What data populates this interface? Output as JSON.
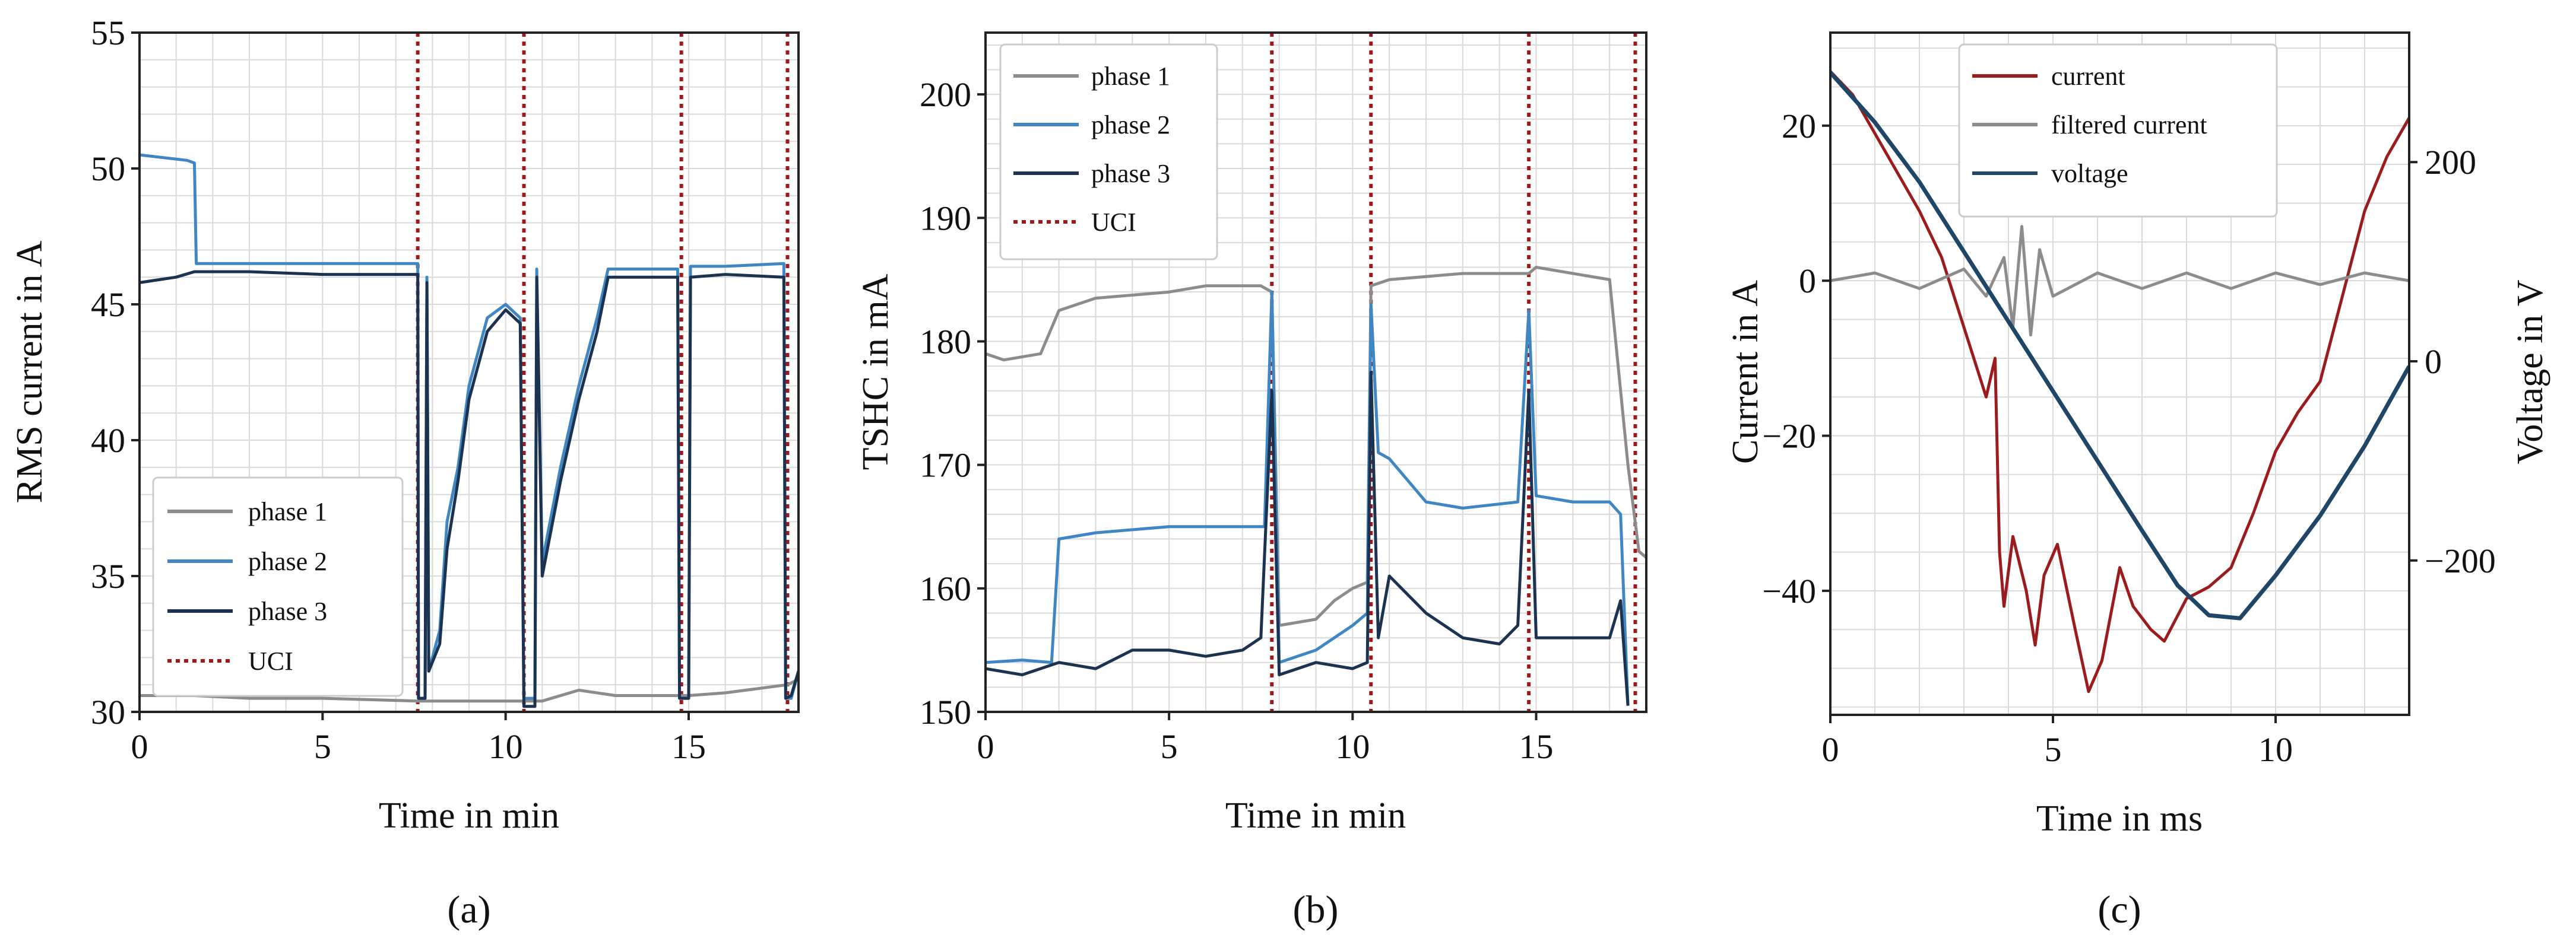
{
  "figure": {
    "captions": [
      "(a)",
      "(b)",
      "(c)"
    ]
  },
  "colors": {
    "phase1": "#8c8c8c",
    "phase2": "#3f86c2",
    "phase3": "#1b3350",
    "uci": "#a01818",
    "current": "#9b1c1c",
    "filtered": "#8c8c8c",
    "voltage": "#1f4666",
    "grid": "#d9d9d9"
  },
  "chart_data": [
    {
      "id": "a",
      "type": "line",
      "title": "",
      "xlabel": "Time in min",
      "ylabel": "RMS current in A",
      "xlim": [
        0,
        18
      ],
      "ylim": [
        30,
        55
      ],
      "xticks": [
        0,
        5,
        10,
        15
      ],
      "yticks": [
        30,
        35,
        40,
        45,
        50,
        55
      ],
      "grid": true,
      "legend_position": "lower-left",
      "legend": [
        "phase 1",
        "phase 2",
        "phase 3",
        "UCI"
      ],
      "uci_lines": [
        7.6,
        10.5,
        14.8,
        17.7
      ],
      "series": [
        {
          "name": "phase 1",
          "color_key": "phase1",
          "points": [
            [
              0,
              30.6
            ],
            [
              1.5,
              30.6
            ],
            [
              3,
              30.5
            ],
            [
              5,
              30.5
            ],
            [
              7.6,
              30.4
            ],
            [
              9,
              30.4
            ],
            [
              10.5,
              30.4
            ],
            [
              11,
              30.4
            ],
            [
              12,
              30.8
            ],
            [
              13,
              30.6
            ],
            [
              15,
              30.6
            ],
            [
              16,
              30.7
            ],
            [
              17.7,
              31.0
            ],
            [
              18,
              31.2
            ]
          ]
        },
        {
          "name": "phase 2",
          "color_key": "phase2",
          "points": [
            [
              0,
              50.5
            ],
            [
              1.3,
              50.3
            ],
            [
              1.5,
              50.2
            ],
            [
              1.55,
              46.5
            ],
            [
              3,
              46.5
            ],
            [
              5,
              46.5
            ],
            [
              7.6,
              46.5
            ],
            [
              7.62,
              30.5
            ],
            [
              7.8,
              30.5
            ],
            [
              7.85,
              46.0
            ],
            [
              7.9,
              31.5
            ],
            [
              8.2,
              33
            ],
            [
              8.4,
              37
            ],
            [
              8.7,
              39
            ],
            [
              9,
              42
            ],
            [
              9.5,
              44.5
            ],
            [
              10,
              45.0
            ],
            [
              10.4,
              44.5
            ],
            [
              10.5,
              30.5
            ],
            [
              10.8,
              30.5
            ],
            [
              10.85,
              46.3
            ],
            [
              11,
              35.5
            ],
            [
              11.5,
              39
            ],
            [
              12,
              42
            ],
            [
              12.5,
              44.5
            ],
            [
              12.8,
              46.3
            ],
            [
              14.7,
              46.3
            ],
            [
              14.75,
              30.5
            ],
            [
              15.0,
              30.5
            ],
            [
              15.05,
              46.4
            ],
            [
              16,
              46.4
            ],
            [
              17.6,
              46.5
            ],
            [
              17.65,
              30.5
            ],
            [
              17.8,
              30.5
            ],
            [
              18,
              31.5
            ]
          ]
        },
        {
          "name": "phase 3",
          "color_key": "phase3",
          "points": [
            [
              0,
              45.8
            ],
            [
              1,
              46.0
            ],
            [
              1.5,
              46.2
            ],
            [
              3,
              46.2
            ],
            [
              5,
              46.1
            ],
            [
              7.6,
              46.1
            ],
            [
              7.62,
              30.5
            ],
            [
              7.8,
              30.5
            ],
            [
              7.85,
              45.8
            ],
            [
              7.9,
              31.5
            ],
            [
              8.2,
              32.5
            ],
            [
              8.4,
              36
            ],
            [
              8.7,
              38.5
            ],
            [
              9,
              41.5
            ],
            [
              9.5,
              44
            ],
            [
              10,
              44.8
            ],
            [
              10.4,
              44.3
            ],
            [
              10.5,
              30.2
            ],
            [
              10.8,
              30.2
            ],
            [
              10.85,
              46.0
            ],
            [
              11,
              35
            ],
            [
              11.5,
              38.5
            ],
            [
              12,
              41.5
            ],
            [
              12.5,
              44
            ],
            [
              12.8,
              46.0
            ],
            [
              14.7,
              46.0
            ],
            [
              14.75,
              30.5
            ],
            [
              15.0,
              30.5
            ],
            [
              15.05,
              46.0
            ],
            [
              16,
              46.1
            ],
            [
              17.6,
              46.0
            ],
            [
              17.65,
              30.5
            ],
            [
              17.8,
              30.6
            ],
            [
              18,
              31.5
            ]
          ]
        }
      ]
    },
    {
      "id": "b",
      "type": "line",
      "title": "",
      "xlabel": "Time in min",
      "ylabel": "TSHC in mA",
      "xlim": [
        0,
        18
      ],
      "ylim": [
        150,
        205
      ],
      "xticks": [
        0,
        5,
        10,
        15
      ],
      "yticks": [
        150,
        160,
        170,
        180,
        190,
        200
      ],
      "grid": true,
      "legend_position": "top-left",
      "legend": [
        "phase 1",
        "phase 2",
        "phase 3",
        "UCI"
      ],
      "uci_lines": [
        7.8,
        10.5,
        14.8,
        17.7
      ],
      "series": [
        {
          "name": "phase 1",
          "color_key": "phase1",
          "points": [
            [
              0,
              179
            ],
            [
              0.5,
              178.5
            ],
            [
              1.5,
              179
            ],
            [
              2,
              182.5
            ],
            [
              3,
              183.5
            ],
            [
              5,
              184
            ],
            [
              6,
              184.5
            ],
            [
              7.5,
              184.5
            ],
            [
              7.8,
              184
            ],
            [
              8,
              157
            ],
            [
              9,
              157.5
            ],
            [
              9.5,
              159
            ],
            [
              10,
              160
            ],
            [
              10.4,
              160.5
            ],
            [
              10.5,
              184.5
            ],
            [
              11,
              185
            ],
            [
              13,
              185.5
            ],
            [
              14.8,
              185.5
            ],
            [
              15,
              186
            ],
            [
              17,
              185
            ],
            [
              17.5,
              170
            ],
            [
              17.8,
              163
            ],
            [
              18,
              162.5
            ]
          ]
        },
        {
          "name": "phase 2",
          "color_key": "phase2",
          "points": [
            [
              0,
              154
            ],
            [
              1,
              154.2
            ],
            [
              1.8,
              154
            ],
            [
              2,
              164
            ],
            [
              3,
              164.5
            ],
            [
              5,
              165
            ],
            [
              7,
              165
            ],
            [
              7.6,
              165
            ],
            [
              7.8,
              184
            ],
            [
              8,
              154
            ],
            [
              9,
              155
            ],
            [
              10,
              157
            ],
            [
              10.4,
              158
            ],
            [
              10.5,
              183
            ],
            [
              10.7,
              171
            ],
            [
              11,
              170.5
            ],
            [
              12,
              167
            ],
            [
              13,
              166.5
            ],
            [
              14.5,
              167
            ],
            [
              14.8,
              182.5
            ],
            [
              15,
              167.5
            ],
            [
              16,
              167
            ],
            [
              17,
              167
            ],
            [
              17.3,
              166
            ],
            [
              17.5,
              150.5
            ]
          ]
        },
        {
          "name": "phase 3",
          "color_key": "phase3",
          "points": [
            [
              0,
              153.5
            ],
            [
              1,
              153
            ],
            [
              2,
              154
            ],
            [
              3,
              153.5
            ],
            [
              4,
              155
            ],
            [
              5,
              155
            ],
            [
              6,
              154.5
            ],
            [
              7,
              155
            ],
            [
              7.5,
              156
            ],
            [
              7.8,
              176
            ],
            [
              8,
              153
            ],
            [
              9,
              154
            ],
            [
              10,
              153.5
            ],
            [
              10.4,
              154
            ],
            [
              10.5,
              177.5
            ],
            [
              10.7,
              156
            ],
            [
              11,
              161
            ],
            [
              12,
              158
            ],
            [
              13,
              156
            ],
            [
              14,
              155.5
            ],
            [
              14.5,
              157
            ],
            [
              14.8,
              176
            ],
            [
              15,
              156
            ],
            [
              16,
              156
            ],
            [
              17,
              156
            ],
            [
              17.3,
              159
            ],
            [
              17.5,
              150.5
            ]
          ]
        }
      ]
    },
    {
      "id": "c",
      "type": "line",
      "title": "",
      "xlabel": "Time in ms",
      "ylabel": "Current in A",
      "y2label": "Voltage in V",
      "xlim": [
        0,
        13
      ],
      "ylim": [
        -56,
        32
      ],
      "y2lim": [
        -355,
        330
      ],
      "xticks": [
        0,
        5,
        10
      ],
      "yticks": [
        -40,
        -20,
        0,
        20
      ],
      "y2ticks": [
        -200,
        0,
        200
      ],
      "grid": true,
      "legend_position": "top-center",
      "legend": [
        "current",
        "filtered current",
        "voltage"
      ],
      "series": [
        {
          "name": "current",
          "axis": "left",
          "color_key": "current",
          "points": [
            [
              0,
              27
            ],
            [
              0.5,
              24
            ],
            [
              1,
              19
            ],
            [
              1.5,
              14
            ],
            [
              2,
              9
            ],
            [
              2.5,
              3
            ],
            [
              3,
              -6
            ],
            [
              3.5,
              -15
            ],
            [
              3.7,
              -10
            ],
            [
              3.8,
              -35
            ],
            [
              3.9,
              -42
            ],
            [
              4.1,
              -33
            ],
            [
              4.4,
              -40
            ],
            [
              4.6,
              -47
            ],
            [
              4.8,
              -38
            ],
            [
              5.1,
              -34
            ],
            [
              5.5,
              -45
            ],
            [
              5.8,
              -53
            ],
            [
              6.1,
              -49
            ],
            [
              6.5,
              -37
            ],
            [
              6.8,
              -42
            ],
            [
              7.2,
              -45
            ],
            [
              7.5,
              -46.5
            ],
            [
              8,
              -41
            ],
            [
              8.5,
              -39.5
            ],
            [
              9,
              -37
            ],
            [
              9.5,
              -30
            ],
            [
              10,
              -22
            ],
            [
              10.5,
              -17
            ],
            [
              11,
              -13
            ],
            [
              11.5,
              -2
            ],
            [
              12,
              9
            ],
            [
              12.5,
              16
            ],
            [
              13,
              21
            ]
          ]
        },
        {
          "name": "filtered current",
          "axis": "left",
          "color_key": "filtered",
          "points": [
            [
              0,
              0
            ],
            [
              1,
              1
            ],
            [
              2,
              -1
            ],
            [
              3,
              1.5
            ],
            [
              3.5,
              -2
            ],
            [
              3.9,
              3
            ],
            [
              4.1,
              -6
            ],
            [
              4.3,
              7
            ],
            [
              4.5,
              -7
            ],
            [
              4.7,
              4
            ],
            [
              5,
              -2
            ],
            [
              6,
              1
            ],
            [
              7,
              -1
            ],
            [
              8,
              1
            ],
            [
              9,
              -1
            ],
            [
              10,
              1
            ],
            [
              11,
              -0.5
            ],
            [
              12,
              1
            ],
            [
              13,
              0
            ]
          ]
        },
        {
          "name": "voltage",
          "axis": "right",
          "color_key": "voltage",
          "points": [
            [
              0,
              290
            ],
            [
              1,
              240
            ],
            [
              2,
              180
            ],
            [
              3,
              110
            ],
            [
              4,
              40
            ],
            [
              5,
              -30
            ],
            [
              6,
              -100
            ],
            [
              7,
              -170
            ],
            [
              7.8,
              -225
            ],
            [
              8.5,
              -255
            ],
            [
              9.2,
              -258
            ],
            [
              10,
              -215
            ],
            [
              11,
              -155
            ],
            [
              12,
              -85
            ],
            [
              13,
              -5
            ]
          ]
        }
      ]
    }
  ]
}
